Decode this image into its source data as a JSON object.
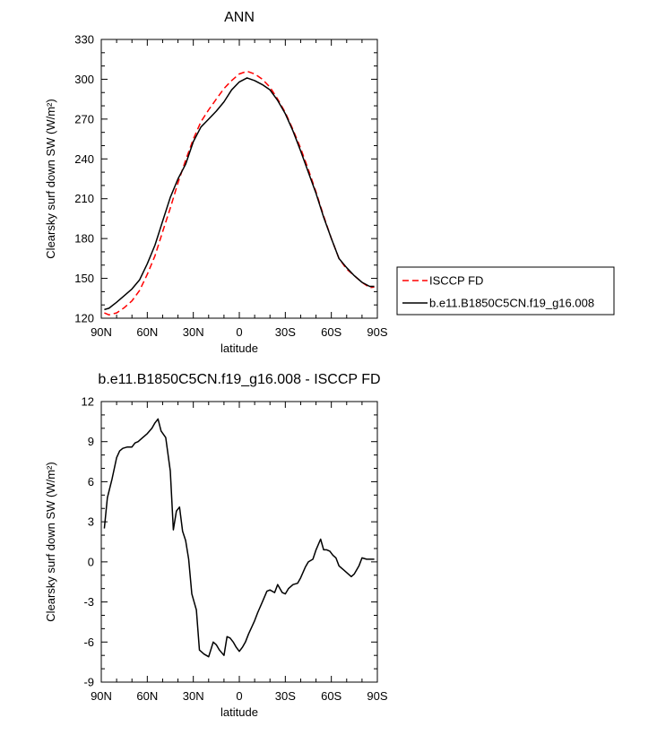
{
  "chart_data": [
    {
      "type": "line",
      "title": "ANN",
      "xlabel": "latitude",
      "ylabel": "Clearsky surf down SW (W/m²)",
      "xlim": [
        -90,
        90
      ],
      "ylim": [
        120,
        330
      ],
      "xticks": [
        -90,
        -60,
        -30,
        0,
        30,
        60,
        90
      ],
      "xticklabels": [
        "90N",
        "60N",
        "30N",
        "0",
        "30S",
        "60S",
        "90S"
      ],
      "yticks": [
        120,
        150,
        180,
        210,
        240,
        270,
        300,
        330
      ],
      "yticklabels": [
        "120",
        "150",
        "180",
        "210",
        "240",
        "270",
        "300",
        "330"
      ],
      "legend_position": "right",
      "series": [
        {
          "name": "ISCCP FD",
          "color": "#ff0000",
          "dash": "dashed",
          "x": [
            -88,
            -85,
            -80,
            -75,
            -70,
            -65,
            -60,
            -55,
            -50,
            -45,
            -40,
            -35,
            -30,
            -25,
            -20,
            -15,
            -10,
            -5,
            0,
            5,
            10,
            15,
            20,
            25,
            30,
            35,
            40,
            45,
            50,
            55,
            60,
            65,
            70,
            75,
            80,
            85,
            88
          ],
          "y": [
            124,
            122.5,
            124,
            128,
            133,
            141,
            153,
            167,
            185,
            203,
            222,
            239,
            255,
            268,
            277,
            285,
            293,
            299,
            304,
            306,
            304,
            300,
            294,
            285,
            275,
            262,
            248,
            232,
            215,
            197,
            180,
            165,
            157,
            152,
            147,
            143,
            143.5
          ]
        },
        {
          "name": "b.e11.B1850C5CN.f19_g16.008",
          "color": "#000000",
          "dash": "solid",
          "x": [
            -88,
            -85,
            -80,
            -75,
            -70,
            -65,
            -60,
            -55,
            -50,
            -45,
            -40,
            -35,
            -30,
            -25,
            -20,
            -15,
            -10,
            -5,
            0,
            5,
            10,
            15,
            20,
            25,
            30,
            35,
            40,
            45,
            50,
            55,
            60,
            65,
            70,
            75,
            80,
            85,
            88
          ],
          "y": [
            126.5,
            127.5,
            132,
            137,
            142,
            149,
            161,
            175,
            193,
            211,
            225,
            236,
            253,
            264,
            270,
            276,
            283,
            292,
            298,
            301,
            299,
            296,
            292,
            284,
            274,
            261,
            246,
            230,
            214,
            196,
            180,
            165,
            158,
            152,
            147,
            144,
            144
          ]
        }
      ]
    },
    {
      "type": "line",
      "title": "b.e11.B1850C5CN.f19_g16.008 - ISCCP FD",
      "xlabel": "latitude",
      "ylabel": "Clearsky surf down SW (W/m²)",
      "xlim": [
        -90,
        90
      ],
      "ylim": [
        -9,
        12
      ],
      "xticks": [
        -90,
        -60,
        -30,
        0,
        30,
        60,
        90
      ],
      "xticklabels": [
        "90N",
        "60N",
        "30N",
        "0",
        "30S",
        "60S",
        "90S"
      ],
      "yticks": [
        -9,
        -6,
        -3,
        0,
        3,
        6,
        9,
        12
      ],
      "yticklabels": [
        "-9",
        "-6",
        "-3",
        "0",
        "3",
        "6",
        "9",
        "12"
      ],
      "series": [
        {
          "color": "#000000",
          "dash": "solid",
          "x": [
            -88,
            -86,
            -83,
            -80,
            -78,
            -76,
            -73,
            -70,
            -68,
            -66,
            -63,
            -60,
            -57,
            -55,
            -53,
            -51,
            -48,
            -45,
            -43,
            -41,
            -39,
            -37,
            -35,
            -33,
            -31,
            -28,
            -26,
            -23,
            -20,
            -17,
            -15,
            -13,
            -10,
            -8,
            -6,
            -4,
            -2,
            0,
            2,
            4,
            6,
            8,
            10,
            12,
            15,
            18,
            20,
            23,
            25,
            28,
            30,
            32,
            35,
            38,
            40,
            43,
            45,
            48,
            50,
            53,
            55,
            57,
            59,
            61,
            63,
            65,
            68,
            70,
            73,
            75,
            78,
            80,
            83,
            85,
            88
          ],
          "y": [
            2.5,
            4.8,
            6.2,
            7.8,
            8.3,
            8.5,
            8.6,
            8.6,
            8.9,
            9.0,
            9.3,
            9.6,
            10.0,
            10.4,
            10.7,
            9.8,
            9.3,
            6.8,
            2.4,
            3.8,
            4.1,
            2.3,
            1.6,
            0.2,
            -2.4,
            -3.6,
            -6.6,
            -6.9,
            -7.1,
            -6.0,
            -6.2,
            -6.6,
            -7.0,
            -5.6,
            -5.7,
            -6.0,
            -6.4,
            -6.7,
            -6.4,
            -6.0,
            -5.4,
            -4.9,
            -4.4,
            -3.8,
            -3.0,
            -2.2,
            -2.1,
            -2.3,
            -1.7,
            -2.3,
            -2.4,
            -2.0,
            -1.7,
            -1.6,
            -1.2,
            -0.4,
            0.0,
            0.2,
            0.9,
            1.7,
            0.9,
            0.9,
            0.8,
            0.5,
            0.3,
            -0.3,
            -0.6,
            -0.8,
            -1.1,
            -0.9,
            -0.3,
            0.3,
            0.2,
            0.2,
            0.2
          ]
        }
      ]
    }
  ]
}
